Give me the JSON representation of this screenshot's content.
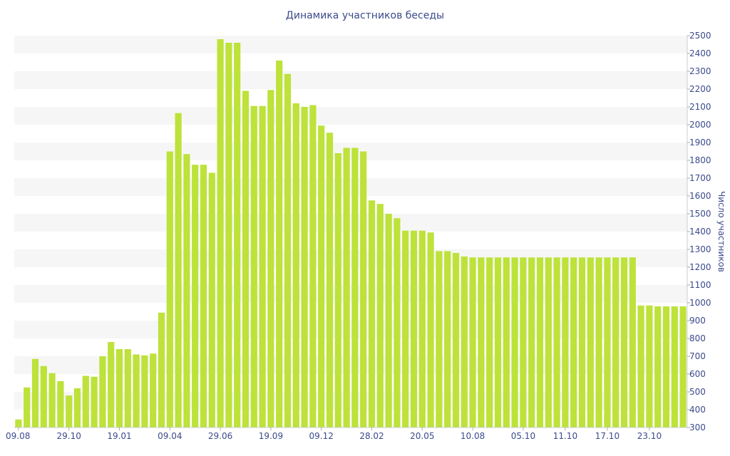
{
  "chart_data": {
    "type": "bar",
    "title": "Динамика участников беседы",
    "ylabel": "Число участников",
    "ylim": [
      300,
      2500
    ],
    "y_ticks": [
      300,
      400,
      500,
      600,
      700,
      800,
      900,
      1000,
      1100,
      1200,
      1300,
      1400,
      1500,
      1600,
      1700,
      1800,
      1900,
      2000,
      2100,
      2200,
      2300,
      2400,
      2500
    ],
    "x_tick_labels": [
      {
        "index": 0,
        "label": "09.08"
      },
      {
        "index": 6,
        "label": "29.10"
      },
      {
        "index": 12,
        "label": "19.01"
      },
      {
        "index": 18,
        "label": "09.04"
      },
      {
        "index": 24,
        "label": "29.06"
      },
      {
        "index": 30,
        "label": "19.09"
      },
      {
        "index": 36,
        "label": "09.12"
      },
      {
        "index": 42,
        "label": "28.02"
      },
      {
        "index": 48,
        "label": "20.05"
      },
      {
        "index": 54,
        "label": "10.08"
      },
      {
        "index": 60,
        "label": "05.10"
      },
      {
        "index": 65,
        "label": "11.10"
      },
      {
        "index": 70,
        "label": "17.10"
      },
      {
        "index": 75,
        "label": "23.10"
      }
    ],
    "values": [
      345,
      525,
      685,
      645,
      605,
      560,
      480,
      520,
      590,
      585,
      700,
      780,
      740,
      740,
      710,
      705,
      715,
      945,
      1850,
      2065,
      1835,
      1775,
      1775,
      1730,
      2480,
      2460,
      2460,
      2190,
      2105,
      2105,
      2195,
      2360,
      2285,
      2120,
      2100,
      2110,
      1995,
      1955,
      1840,
      1870,
      1870,
      1850,
      1575,
      1555,
      1500,
      1475,
      1405,
      1405,
      1405,
      1395,
      1290,
      1290,
      1280,
      1260,
      1255,
      1255,
      1255,
      1255,
      1255,
      1255,
      1255,
      1255,
      1255,
      1255,
      1255,
      1255,
      1255,
      1255,
      1255,
      1255,
      1255,
      1255,
      1255,
      1255,
      985,
      985,
      980,
      980,
      980,
      980
    ],
    "bar_color": "#bde23a",
    "stripe_color": "#f6f6f6",
    "text_color": "#3b4a8c",
    "grid": true
  }
}
